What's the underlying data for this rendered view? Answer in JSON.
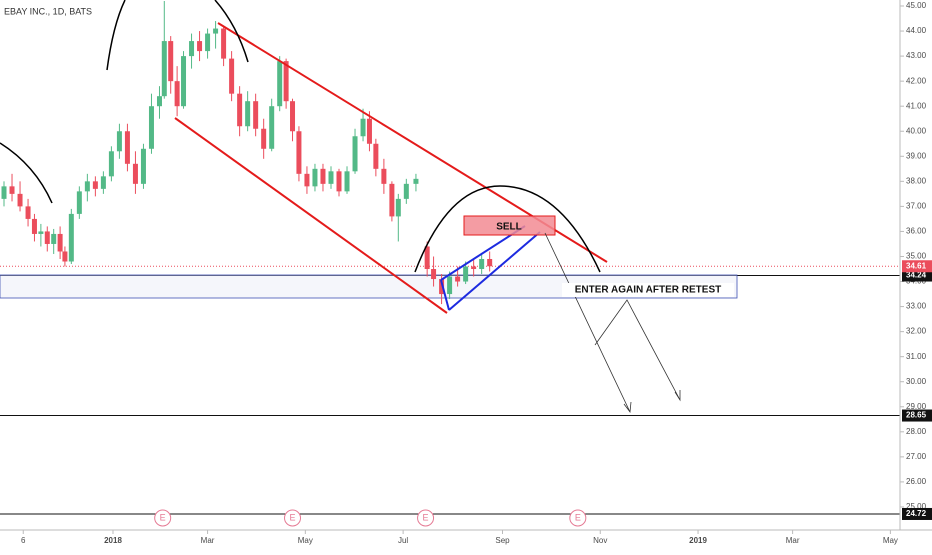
{
  "chart_data": {
    "type": "candlestick",
    "title": "EBAY INC., 1D, BATS",
    "x": [
      -68,
      -63,
      -58,
      -53,
      -49,
      -45,
      -41,
      -37,
      -33,
      -30,
      -26,
      -21,
      -16,
      -11,
      -6,
      -1,
      4,
      9,
      14,
      19,
      24,
      29,
      32,
      36,
      40,
      44,
      49,
      54,
      59,
      64,
      69,
      74,
      79,
      84,
      89,
      94,
      99,
      104,
      108,
      112,
      116,
      121,
      126,
      131,
      136,
      141,
      146,
      151,
      156,
      160,
      164,
      169,
      174,
      178,
      183,
      189,
      196,
      200,
      205,
      210,
      215,
      220,
      225,
      230,
      235
    ],
    "open": [
      37.3,
      37.8,
      37.5,
      37.0,
      36.5,
      35.9,
      36.0,
      35.5,
      35.9,
      35.2,
      34.8,
      36.7,
      37.6,
      38.0,
      37.7,
      38.2,
      39.2,
      40.0,
      38.7,
      37.9,
      39.3,
      41.0,
      41.4,
      43.6,
      42.0,
      41.0,
      43.0,
      43.6,
      43.2,
      43.9,
      44.1,
      42.9,
      41.5,
      40.2,
      41.2,
      40.1,
      39.3,
      41.0,
      42.8,
      41.2,
      40.0,
      38.3,
      37.8,
      38.5,
      37.9,
      38.4,
      37.6,
      38.4,
      39.8,
      40.5,
      39.5,
      38.5,
      37.9,
      36.6,
      37.3,
      37.9,
      35.4,
      34.5,
      34.1,
      33.5,
      34.2,
      34.0,
      34.6,
      34.5,
      34.9
    ],
    "high": [
      38.0,
      38.3,
      38.0,
      37.3,
      36.7,
      36.3,
      36.2,
      36.1,
      36.2,
      35.4,
      36.9,
      37.8,
      38.3,
      38.2,
      38.4,
      39.4,
      40.3,
      40.3,
      39.2,
      39.5,
      41.5,
      41.8,
      45.2,
      43.8,
      42.6,
      43.2,
      43.9,
      44.0,
      44.1,
      44.4,
      44.2,
      43.2,
      41.8,
      41.6,
      41.5,
      40.5,
      41.3,
      43.0,
      42.9,
      41.3,
      40.2,
      38.6,
      38.7,
      38.7,
      38.6,
      38.5,
      38.6,
      40.1,
      40.9,
      40.8,
      39.7,
      38.9,
      38.0,
      37.5,
      38.1,
      38.3,
      35.6,
      35.0,
      34.3,
      34.4,
      34.6,
      34.8,
      34.9,
      35.1,
      35.2
    ],
    "low": [
      37.0,
      37.2,
      36.8,
      36.2,
      35.6,
      35.4,
      35.2,
      35.1,
      34.9,
      34.6,
      34.7,
      36.5,
      37.2,
      37.4,
      37.5,
      38.0,
      38.9,
      38.4,
      37.5,
      37.7,
      39.1,
      40.5,
      41.3,
      41.5,
      40.6,
      40.9,
      42.5,
      42.8,
      42.9,
      43.3,
      42.6,
      41.2,
      39.8,
      40.0,
      39.8,
      38.9,
      39.2,
      40.8,
      40.9,
      39.6,
      38.0,
      37.5,
      37.6,
      37.6,
      37.7,
      37.4,
      37.5,
      38.3,
      39.6,
      39.2,
      38.2,
      37.5,
      36.4,
      35.6,
      37.1,
      37.6,
      34.2,
      33.8,
      33.1,
      33.3,
      33.8,
      33.9,
      34.2,
      34.3,
      34.4
    ],
    "close": [
      37.8,
      37.5,
      37.0,
      36.5,
      35.9,
      36.0,
      35.5,
      35.9,
      35.2,
      34.8,
      36.7,
      37.6,
      38.0,
      37.7,
      38.2,
      39.2,
      40.0,
      38.7,
      37.9,
      39.3,
      41.0,
      41.4,
      43.6,
      42.0,
      41.0,
      43.0,
      43.6,
      43.2,
      43.9,
      44.1,
      42.9,
      41.5,
      40.2,
      41.2,
      40.1,
      39.3,
      41.0,
      42.8,
      41.2,
      40.0,
      38.3,
      37.8,
      38.5,
      37.9,
      38.4,
      37.6,
      38.4,
      39.8,
      40.5,
      39.5,
      38.5,
      37.9,
      36.6,
      37.3,
      37.9,
      38.1,
      34.5,
      34.1,
      33.5,
      34.2,
      34.0,
      34.6,
      34.5,
      34.9,
      34.61
    ],
    "up_color": "#53b987",
    "down_color": "#eb4d5c",
    "xlim": [
      -70.5,
      491
    ],
    "xticks": [
      {
        "value": -56,
        "label": "6"
      },
      {
        "value": 0,
        "label": "2018"
      },
      {
        "value": 59,
        "label": "Mar"
      },
      {
        "value": 120,
        "label": "May"
      },
      {
        "value": 181,
        "label": "Jul"
      },
      {
        "value": 243,
        "label": "Sep"
      },
      {
        "value": 304,
        "label": "Nov"
      },
      {
        "value": 365,
        "label": "2019"
      },
      {
        "value": 424,
        "label": "Mar"
      },
      {
        "value": 485,
        "label": "May"
      }
    ],
    "ylim": [
      24.16,
      45.24
    ],
    "yticks": [
      {
        "value": 25,
        "label": "25.00"
      },
      {
        "value": 26,
        "label": "26.00"
      },
      {
        "value": 27,
        "label": "27.00"
      },
      {
        "value": 28,
        "label": "28.00"
      },
      {
        "value": 29,
        "label": "29.00"
      },
      {
        "value": 30,
        "label": "30.00"
      },
      {
        "value": 31,
        "label": "31.00"
      },
      {
        "value": 32,
        "label": "32.00"
      },
      {
        "value": 33,
        "label": "33.00"
      },
      {
        "value": 34,
        "label": "34.00"
      },
      {
        "value": 35,
        "label": "35.00"
      },
      {
        "value": 36,
        "label": "36.00"
      },
      {
        "value": 37,
        "label": "37.00"
      },
      {
        "value": 38,
        "label": "38.00"
      },
      {
        "value": 39,
        "label": "39.00"
      },
      {
        "value": 40,
        "label": "40.00"
      },
      {
        "value": 41,
        "label": "41.00"
      },
      {
        "value": 42,
        "label": "42.00"
      },
      {
        "value": 43,
        "label": "43.00"
      },
      {
        "value": 44,
        "label": "44.00"
      },
      {
        "value": 45,
        "label": "45.00"
      }
    ],
    "grid": false,
    "last_price": 34.61,
    "horizontal_lines": [
      34.24,
      28.65,
      24.72
    ],
    "events": [
      {
        "x": 31,
        "label": "E"
      },
      {
        "x": 112,
        "label": "E"
      },
      {
        "x": 195,
        "label": "E"
      },
      {
        "x": 290,
        "label": "E"
      }
    ],
    "annotations": [
      "SELL",
      "ENTER AGAIN AFTER RETEST"
    ]
  }
}
